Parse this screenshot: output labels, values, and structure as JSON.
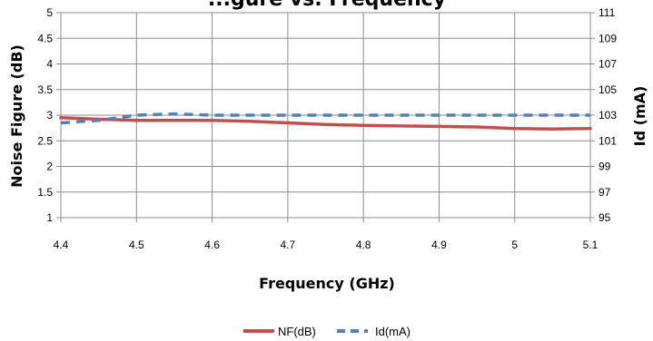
{
  "chart_data": {
    "type": "line",
    "title": "...gure vs. Frequency",
    "xlabel": "Frequency (GHz)",
    "ylabel": "Noise Figure (dB)",
    "y2label": "Id (mA)",
    "x_ticks": [
      "4.4",
      "4.5",
      "4.6",
      "4.7",
      "4.8",
      "4.9",
      "5",
      "5.1"
    ],
    "y_ticks": [
      "1",
      "1.5",
      "2",
      "2.5",
      "3",
      "3.5",
      "4",
      "4.5",
      "5"
    ],
    "y2_ticks": [
      "95",
      "97",
      "99",
      "101",
      "103",
      "105",
      "107",
      "109",
      "111"
    ],
    "xlim": [
      4.4,
      5.1
    ],
    "ylim": [
      1,
      5
    ],
    "y2lim": [
      95,
      111
    ],
    "grid": true,
    "legend_position": "bottom-center",
    "series": [
      {
        "name": "NF(dB)",
        "axis": "left",
        "color": "#c0504d",
        "style": "solid",
        "x": [
          4.4,
          4.45,
          4.5,
          4.55,
          4.6,
          4.65,
          4.7,
          4.75,
          4.8,
          4.85,
          4.9,
          4.95,
          5.0,
          5.05,
          5.1
        ],
        "values": [
          2.95,
          2.92,
          2.9,
          2.9,
          2.9,
          2.88,
          2.85,
          2.82,
          2.8,
          2.79,
          2.78,
          2.77,
          2.74,
          2.73,
          2.74
        ]
      },
      {
        "name": "Id(mA)",
        "axis": "right",
        "color": "#4f81bd",
        "style": "dashed",
        "x": [
          4.4,
          4.45,
          4.5,
          4.55,
          4.6,
          4.7,
          4.8,
          4.9,
          5.0,
          5.1
        ],
        "values": [
          102.4,
          102.6,
          103.0,
          103.1,
          103.0,
          103.0,
          103.0,
          103.0,
          103.0,
          103.0
        ]
      }
    ]
  }
}
